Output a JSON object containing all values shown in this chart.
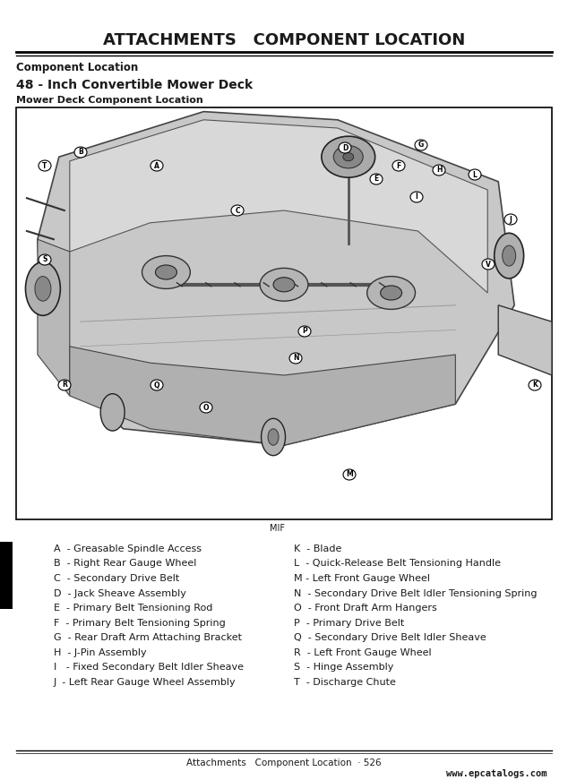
{
  "title": "ATTACHMENTS   COMPONENT LOCATION",
  "subtitle1": "Component Location",
  "subtitle2": "48 - Inch Convertible Mower Deck",
  "subtitle3": "Mower Deck Component Location",
  "mif_label": "MIF",
  "footer_left": "Attachments   Component Location  · 526",
  "footer_right": "www.epcatalogs.com",
  "bg_color": "#ffffff",
  "text_color": "#1a1a1a",
  "left_items": [
    "A  - Greasable Spindle Access",
    "B  - Right Rear Gauge Wheel",
    "C  - Secondary Drive Belt",
    "D  - Jack Sheave Assembly",
    "E  - Primary Belt Tensioning Rod",
    "F  - Primary Belt Tensioning Spring",
    "G  - Rear Draft Arm Attaching Bracket",
    "H  - J-Pin Assembly",
    "I   - Fixed Secondary Belt Idler Sheave",
    "J  - Left Rear Gauge Wheel Assembly"
  ],
  "right_items": [
    "K  - Blade",
    "L  - Quick-Release Belt Tensioning Handle",
    "M - Left Front Gauge Wheel",
    "N  - Secondary Drive Belt Idler Tensioning Spring",
    "O  - Front Draft Arm Hangers",
    "P  - Primary Drive Belt",
    "Q  - Secondary Drive Belt Idler Sheave",
    "R  - Left Front Gauge Wheel",
    "S  - Hinge Assembly",
    "T  - Discharge Chute"
  ],
  "title_fontsize": 13,
  "subtitle1_fontsize": 8.5,
  "subtitle2_fontsize": 10,
  "subtitle3_fontsize": 8,
  "legend_fontsize": 8,
  "footer_fontsize": 7.5,
  "mif_fontsize": 7
}
